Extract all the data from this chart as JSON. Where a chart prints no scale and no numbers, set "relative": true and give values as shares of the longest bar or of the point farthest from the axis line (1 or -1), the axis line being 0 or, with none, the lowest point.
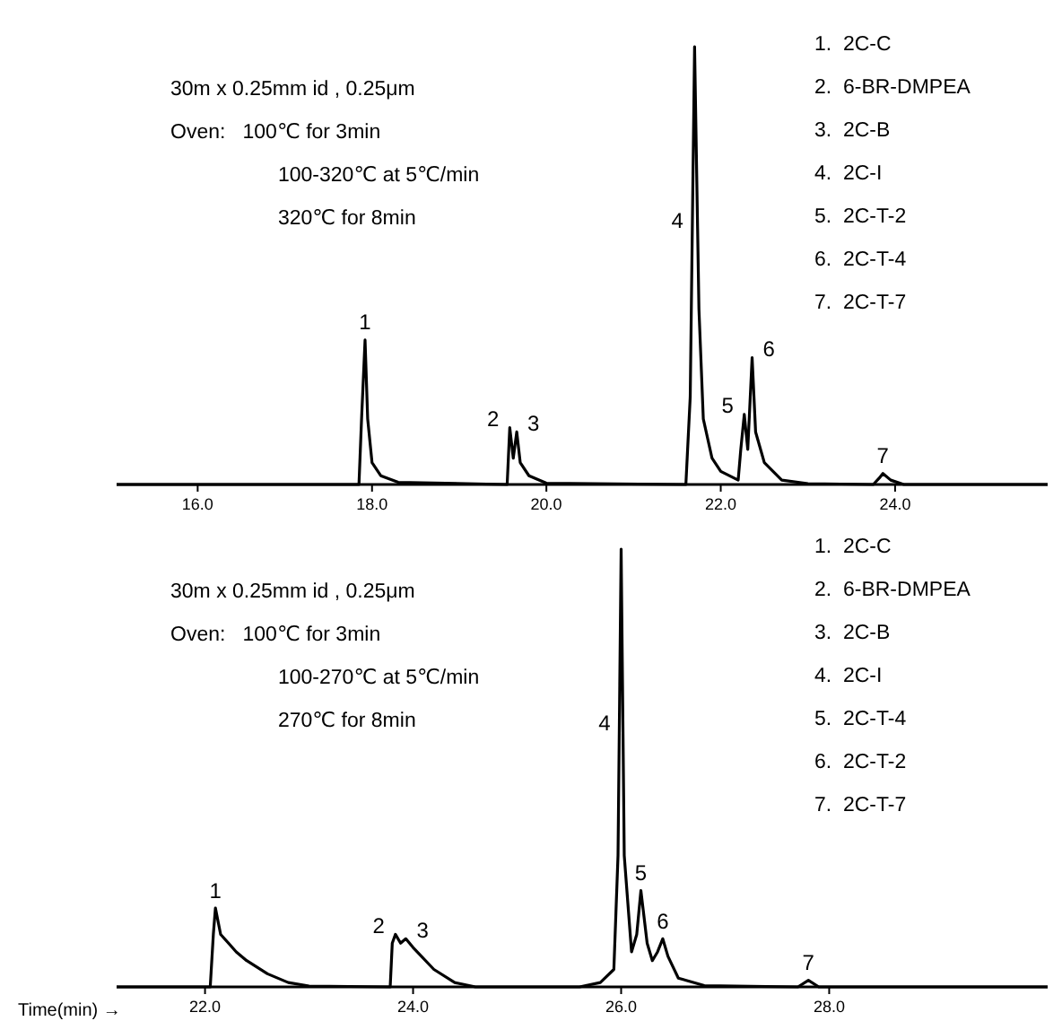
{
  "chart_data": [
    {
      "type": "line",
      "relative": true,
      "xlim": [
        15.07,
        25.75
      ],
      "xticks": [
        {
          "value": 16,
          "label": "16.0"
        },
        {
          "value": 18,
          "label": "18.0"
        },
        {
          "value": 20,
          "label": "20.0"
        },
        {
          "value": 22,
          "label": "22.0"
        },
        {
          "value": 24,
          "label": "24.0"
        }
      ],
      "grid": false,
      "marker": "none",
      "line_style": "solid",
      "series": [
        {
          "color": "#000000",
          "x": [
            15.07,
            17.85,
            17.88,
            17.92,
            17.95,
            18.0,
            18.1,
            18.3,
            19.55,
            19.58,
            19.62,
            19.66,
            19.7,
            19.8,
            20.0,
            21.6,
            21.65,
            21.7,
            21.75,
            21.8,
            21.9,
            22.0,
            22.2,
            22.23,
            22.27,
            22.31,
            22.36,
            22.4,
            22.5,
            22.7,
            23.0,
            23.75,
            23.82,
            23.86,
            23.95,
            24.1,
            25.75
          ],
          "values": [
            0,
            0,
            0.15,
            0.33,
            0.15,
            0.05,
            0.02,
            0.005,
            0,
            0.13,
            0.06,
            0.12,
            0.05,
            0.02,
            0.003,
            0,
            0.2,
            1,
            0.4,
            0.15,
            0.06,
            0.03,
            0.01,
            0.08,
            0.16,
            0.08,
            0.29,
            0.12,
            0.05,
            0.01,
            0.002,
            0,
            0.015,
            0.025,
            0.01,
            0,
            0
          ]
        }
      ],
      "annotations": [
        "30m x 0.25mm id , 0.25μm",
        "Oven:   100℃ for 3min",
        "100-320℃ at 5℃/min",
        "320℃ for 8min",
        "1.  2C-C",
        "2.  6-BR-DMPEA",
        "3.  2C-B",
        "4.  2C-I",
        "5.  2C-T-2",
        "6.  2C-T-4",
        "7.  2C-T-7",
        {
          "text": "1",
          "x": 17.92,
          "y": 0.33
        },
        {
          "text": "2",
          "x": 19.58,
          "y": 0.13
        },
        {
          "text": "3",
          "x": 19.66,
          "y": 0.12
        },
        {
          "text": "4",
          "x": 21.675,
          "y": 0.6
        },
        {
          "text": "5",
          "x": 22.27,
          "y": 0.16
        },
        {
          "text": "6",
          "x": 22.36,
          "y": 0.29
        },
        {
          "text": "7",
          "x": 23.86,
          "y": 0.025
        }
      ]
    },
    {
      "type": "line",
      "relative": true,
      "xlabel": "Time(min) →",
      "xlim": [
        21.15,
        30.1
      ],
      "xticks": [
        {
          "value": 22,
          "label": "22.0"
        },
        {
          "value": 24,
          "label": "24.0"
        },
        {
          "value": 26,
          "label": "26.0"
        },
        {
          "value": 28,
          "label": "28.0"
        }
      ],
      "grid": false,
      "marker": "none",
      "line_style": "solid",
      "series": [
        {
          "color": "#000000",
          "x": [
            21.15,
            22.05,
            22.08,
            22.1,
            22.15,
            22.3,
            22.4,
            22.6,
            22.8,
            23.0,
            23.78,
            23.8,
            23.83,
            23.88,
            23.93,
            24.0,
            24.2,
            24.4,
            24.6,
            25.6,
            25.8,
            25.93,
            25.97,
            26.0,
            26.03,
            26.1,
            26.15,
            26.19,
            26.25,
            26.3,
            26.35,
            26.4,
            26.45,
            26.55,
            26.8,
            27.7,
            27.8,
            27.9,
            30.1
          ],
          "values": [
            0,
            0,
            0.12,
            0.18,
            0.12,
            0.08,
            0.06,
            0.03,
            0.01,
            0.002,
            0,
            0.1,
            0.12,
            0.1,
            0.11,
            0.09,
            0.04,
            0.01,
            0,
            0,
            0.01,
            0.04,
            0.3,
            1,
            0.3,
            0.08,
            0.12,
            0.22,
            0.1,
            0.06,
            0.08,
            0.11,
            0.07,
            0.02,
            0.003,
            0,
            0.015,
            0,
            0
          ]
        }
      ],
      "annotations": [
        "30m x 0.25mm id , 0.25μm",
        "Oven:   100℃ for 3min",
        "100-270℃ at 5℃/min",
        "270℃ for 8min",
        "1.  2C-C",
        "2.  6-BR-DMPEA",
        "3.  2C-B",
        "4.  2C-I",
        "5.  2C-T-4",
        "6.  2C-T-2",
        "7.  2C-T-7",
        {
          "text": "1",
          "x": 22.1,
          "y": 0.18
        },
        {
          "text": "2",
          "x": 23.83,
          "y": 0.12
        },
        {
          "text": "3",
          "x": 23.93,
          "y": 0.11
        },
        {
          "text": "4",
          "x": 25.983,
          "y": 0.6
        },
        {
          "text": "5",
          "x": 26.19,
          "y": 0.22
        },
        {
          "text": "6",
          "x": 26.4,
          "y": 0.11
        },
        {
          "text": "7",
          "x": 27.8,
          "y": 0.015
        }
      ]
    }
  ]
}
